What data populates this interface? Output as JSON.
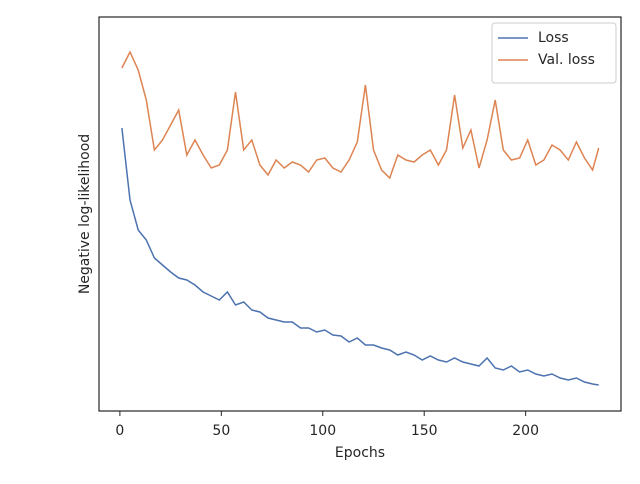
{
  "chart_data": {
    "type": "line",
    "xlabel": "Epochs",
    "ylabel": "Negative log-likelihood",
    "x": [
      1,
      5,
      9,
      13,
      17,
      21,
      25,
      29,
      33,
      37,
      41,
      45,
      49,
      53,
      57,
      61,
      65,
      69,
      73,
      77,
      81,
      85,
      89,
      93,
      97,
      101,
      105,
      109,
      113,
      117,
      121,
      125,
      129,
      133,
      137,
      141,
      145,
      149,
      153,
      157,
      161,
      165,
      169,
      173,
      177,
      181,
      185,
      189,
      193,
      197,
      201,
      205,
      209,
      213,
      217,
      221,
      225,
      229,
      233,
      236
    ],
    "series": [
      {
        "name": "Loss",
        "color": "#4c72b0",
        "values": [
          283,
          211,
          181,
          171,
          153,
          146,
          139,
          133,
          131,
          126,
          119,
          115,
          111,
          119,
          106,
          109,
          101,
          99,
          93,
          91,
          89,
          89,
          83,
          83,
          79,
          81,
          76,
          75,
          69,
          73,
          66,
          66,
          63,
          61,
          56,
          59,
          56,
          51,
          55,
          51,
          49,
          53,
          49,
          47,
          45,
          53,
          43,
          41,
          45,
          39,
          41,
          37,
          35,
          37,
          33,
          31,
          33,
          29,
          27,
          26
        ]
      },
      {
        "name": "Val. loss",
        "color": "#dd8452",
        "values": [
          343,
          359,
          341,
          311,
          261,
          271,
          286,
          301,
          256,
          271,
          256,
          243,
          246,
          261,
          319,
          261,
          271,
          246,
          236,
          251,
          243,
          249,
          246,
          239,
          251,
          253,
          243,
          239,
          251,
          269,
          326,
          261,
          241,
          233,
          256,
          251,
          249,
          256,
          261,
          246,
          261,
          316,
          263,
          281,
          243,
          271,
          311,
          261,
          251,
          253,
          271,
          246,
          251,
          266,
          261,
          251,
          269,
          253,
          241,
          263
        ]
      }
    ],
    "xlim": [
      -10.3,
      247
    ],
    "ylim": [
      0,
      394
    ],
    "xticks": [
      0,
      50,
      100,
      150,
      200
    ],
    "legend": "upper right"
  }
}
